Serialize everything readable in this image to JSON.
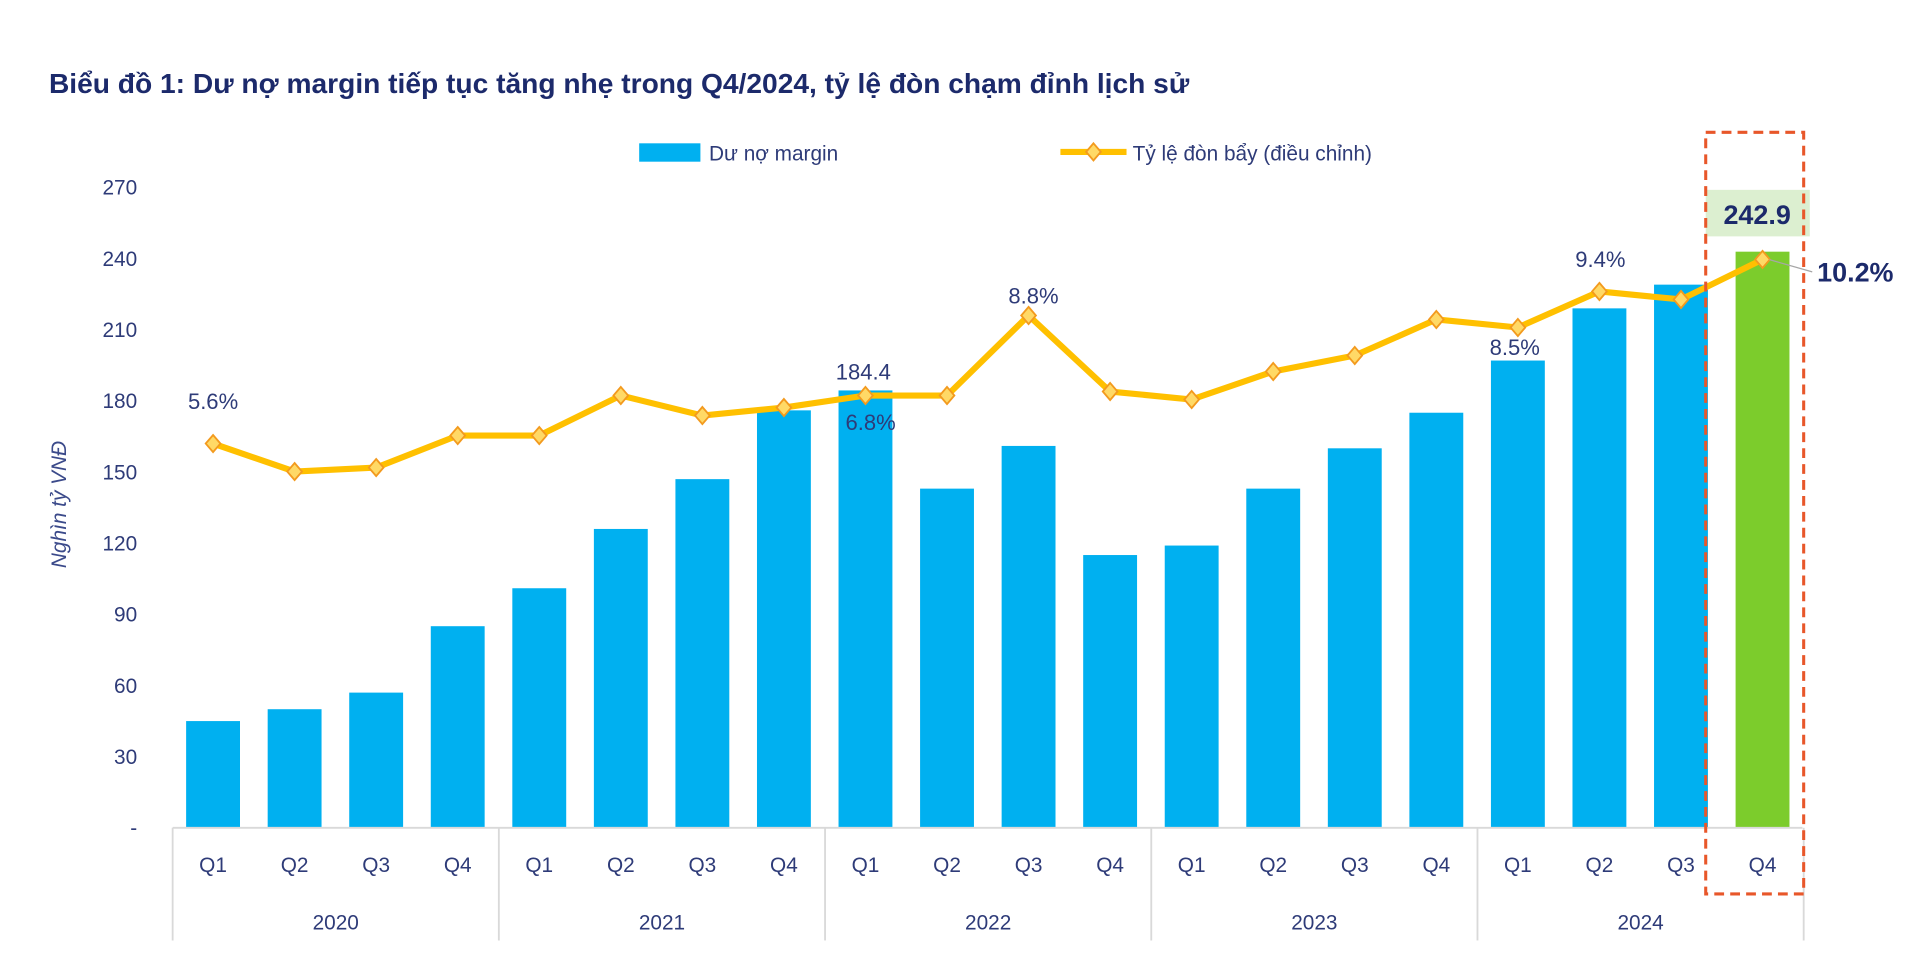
{
  "chart_data": {
    "type": "bar+line",
    "title": "Biểu đồ 1: Dư nợ margin tiếp tục tăng nhẹ trong Q4/2024, tỷ lệ đòn chạm đỉnh lịch sử",
    "ylabel": "Nghìn tỷ VNĐ",
    "ylim": [
      0,
      270
    ],
    "yticks": [
      "-",
      "30",
      "60",
      "90",
      "120",
      "150",
      "180",
      "210",
      "240",
      "270"
    ],
    "y2lim": [
      -4,
      12
    ],
    "secondary_axis_visible": false,
    "grid": false,
    "legend_position": "top",
    "categories": [
      "Q1",
      "Q2",
      "Q3",
      "Q4",
      "Q1",
      "Q2",
      "Q3",
      "Q4",
      "Q1",
      "Q2",
      "Q3",
      "Q4",
      "Q1",
      "Q2",
      "Q3",
      "Q4",
      "Q1",
      "Q2",
      "Q3",
      "Q4"
    ],
    "groups": [
      "2020",
      "2021",
      "2022",
      "2023",
      "2024"
    ],
    "series": [
      {
        "name": "Dư nợ margin",
        "type": "bar",
        "axis": "primary",
        "color": "#00b0f0",
        "highlight_color": "#7ccc2c",
        "values": [
          45,
          50,
          57,
          85,
          101,
          126,
          147,
          176,
          184.4,
          143,
          161,
          115,
          119,
          143,
          160,
          175,
          197,
          219,
          229,
          242.9
        ]
      },
      {
        "name": "Tỷ lệ đòn bẩy (điều chỉnh)",
        "type": "line",
        "axis": "secondary",
        "unit": "%",
        "color": "#ffc000",
        "marker_color": "#f39a1e",
        "values": [
          5.6,
          4.9,
          5.0,
          5.8,
          5.8,
          6.8,
          6.3,
          6.5,
          6.8,
          6.8,
          8.8,
          6.9,
          6.7,
          7.4,
          7.8,
          8.7,
          8.5,
          9.4,
          9.2,
          10.2
        ]
      }
    ],
    "data_labels": {
      "bar_q1_2022": "184.4",
      "bar_q4_2024": "242.9",
      "line_q1_2020": "5.6%",
      "line_q1_2022": "6.8%",
      "line_q3_2022": "8.8%",
      "line_q1_2024": "8.5%",
      "line_q2_2024": "9.4%",
      "line_q4_2024": "10.2%"
    },
    "highlight": {
      "category": "Q4 2024",
      "box_color": "#e8572a"
    }
  }
}
